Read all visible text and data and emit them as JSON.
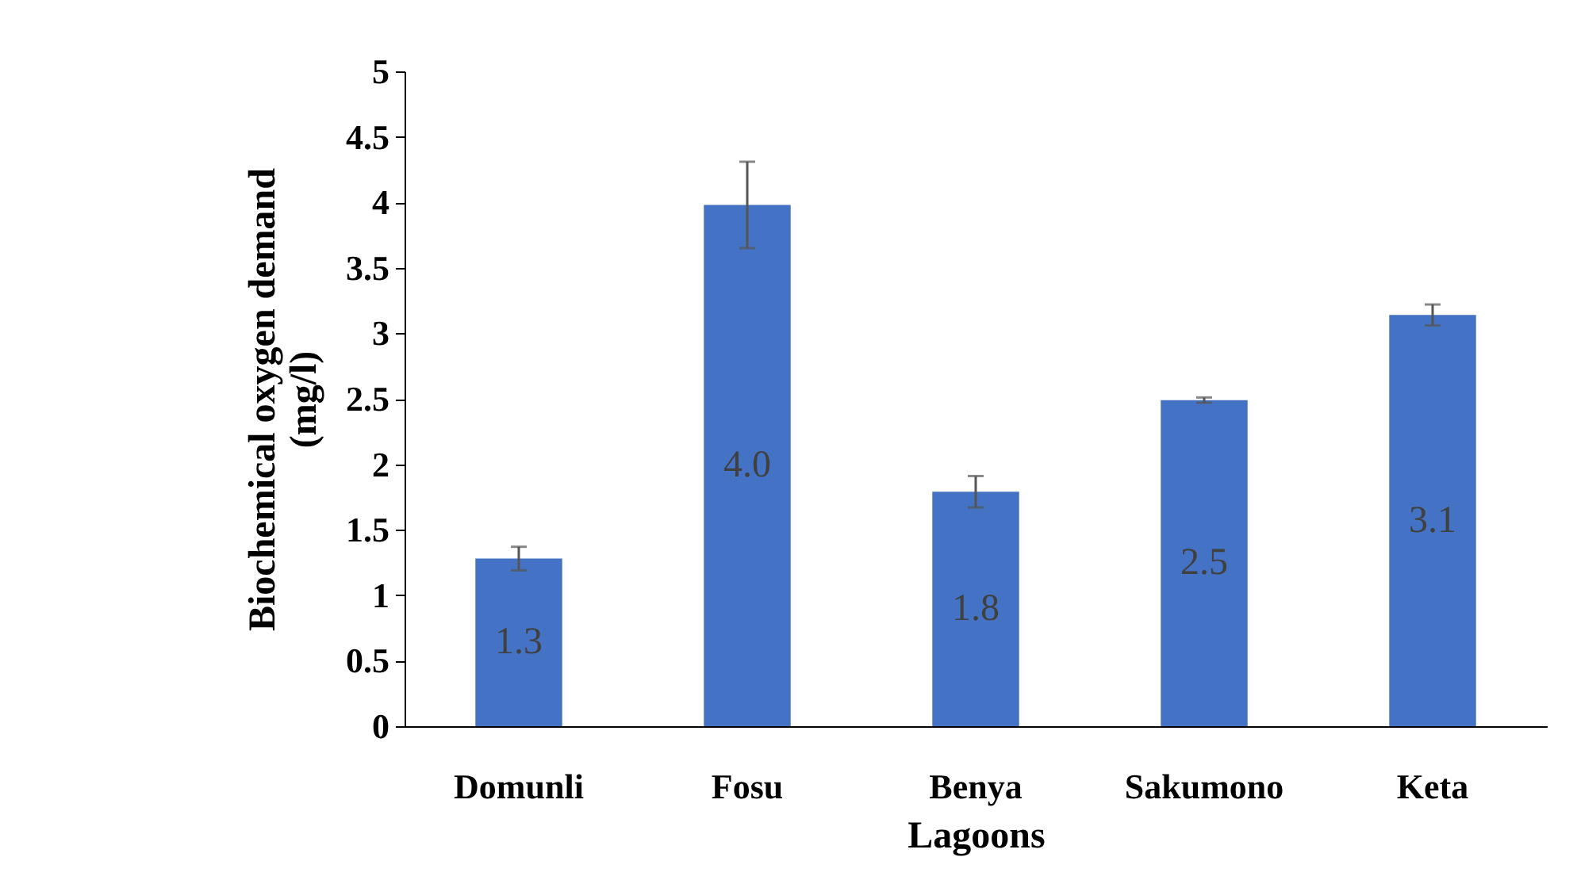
{
  "chart_data": {
    "type": "bar",
    "xlabel": "Lagoons",
    "ylabel": "Biochemical oxygen demand\n(mg/l)",
    "categories": [
      "Domunli",
      "Fosu",
      "Benya",
      "Sakumono",
      "Keta"
    ],
    "values": [
      1.28,
      3.98,
      1.79,
      2.49,
      3.14
    ],
    "errors": [
      0.09,
      0.33,
      0.12,
      0.02,
      0.08
    ],
    "value_labels": [
      "1.3",
      "4.0",
      "1.8",
      "2.5",
      "3.1"
    ],
    "color": "#4472c4",
    "ylim": [
      0,
      5
    ],
    "yticks": [
      0,
      0.5,
      1,
      1.5,
      2,
      2.5,
      3,
      3.5,
      4,
      4.5,
      5
    ],
    "grid": false
  }
}
